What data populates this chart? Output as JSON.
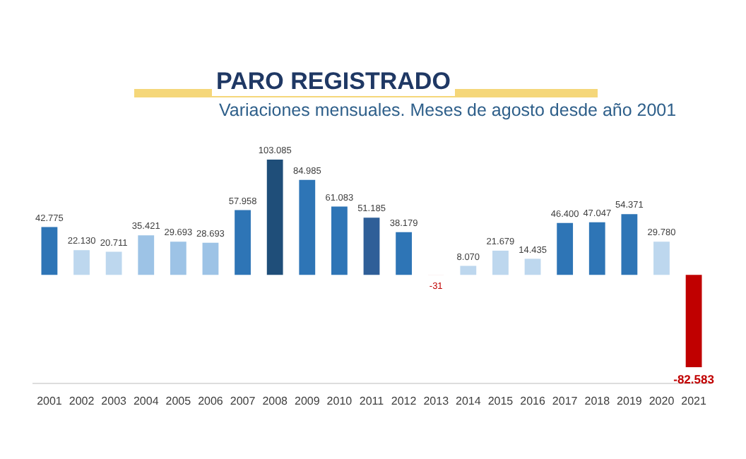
{
  "chart_data": {
    "type": "bar",
    "title": "PARO REGISTRADO",
    "subtitle": "Variaciones mensuales. Meses de agosto desde año 2001",
    "categories": [
      "2001",
      "2002",
      "2003",
      "2004",
      "2005",
      "2006",
      "2007",
      "2008",
      "2009",
      "2010",
      "2011",
      "2012",
      "2013",
      "2014",
      "2015",
      "2016",
      "2017",
      "2018",
      "2019",
      "2020",
      "2021"
    ],
    "values": [
      42775,
      22130,
      20711,
      35421,
      29693,
      28693,
      57958,
      103085,
      84985,
      61083,
      51185,
      38179,
      -31,
      8070,
      21679,
      14435,
      46400,
      47047,
      54371,
      29780,
      -82583
    ],
    "value_labels": [
      "42.775",
      "22.130",
      "20.711",
      "35.421",
      "29.693",
      "28.693",
      "57.958",
      "103.085",
      "84.985",
      "61.083",
      "51.185",
      "38.179",
      "-31",
      "8.070",
      "21.679",
      "14.435",
      "46.400",
      "47.047",
      "54.371",
      "29.780",
      "-82.583"
    ],
    "colors": [
      "#2e75b6",
      "#bdd7ee",
      "#bdd7ee",
      "#9dc3e6",
      "#9dc3e6",
      "#9dc3e6",
      "#2e75b6",
      "#1f4e79",
      "#2e75b6",
      "#2e75b6",
      "#2f5f98",
      "#2e75b6",
      "#c00000",
      "#bdd7ee",
      "#bdd7ee",
      "#bdd7ee",
      "#2e75b6",
      "#2e75b6",
      "#2e75b6",
      "#bdd7ee",
      "#c00000"
    ],
    "tick_labels": "x",
    "grid": false,
    "legend": false
  }
}
